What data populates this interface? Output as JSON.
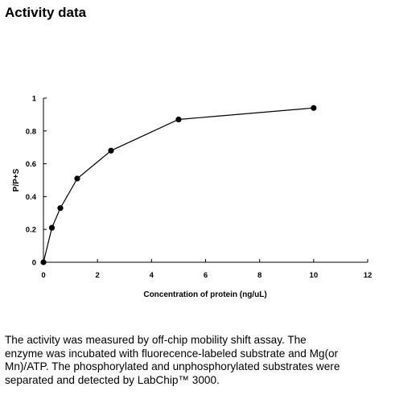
{
  "page": {
    "heading": "Activity data",
    "caption_lines": [
      "The activity was measured by off-chip mobility shift assay. The",
      "enzyme was incubated with fluorecence-labeled  substrate and Mg(or",
      "Mn)/ATP. The phosphorylated and unphosphorylated substrates were",
      "separated and detected by LabChip™ 3000."
    ]
  },
  "chart_data": {
    "type": "line",
    "title": "",
    "xlabel": "Concentration of protein (ng/uL)",
    "ylabel": "P/P+S",
    "xlim": [
      0,
      12
    ],
    "ylim": [
      0,
      1
    ],
    "x_ticks": [
      0,
      2,
      4,
      6,
      8,
      10,
      12
    ],
    "y_ticks": [
      0,
      0.2,
      0.4,
      0.6,
      0.8,
      1
    ],
    "y_tick_labels": [
      "0",
      "0.2",
      "0.4",
      "0.6",
      "0.8",
      "1"
    ],
    "grid": false,
    "legend": "none",
    "series": [
      {
        "x": [
          0,
          0.3125,
          0.625,
          1.25,
          2.5,
          5,
          10
        ],
        "y": [
          0,
          0.21,
          0.33,
          0.51,
          0.68,
          0.87,
          0.94
        ],
        "color": "#000000",
        "marker": "filled-circle"
      }
    ]
  }
}
